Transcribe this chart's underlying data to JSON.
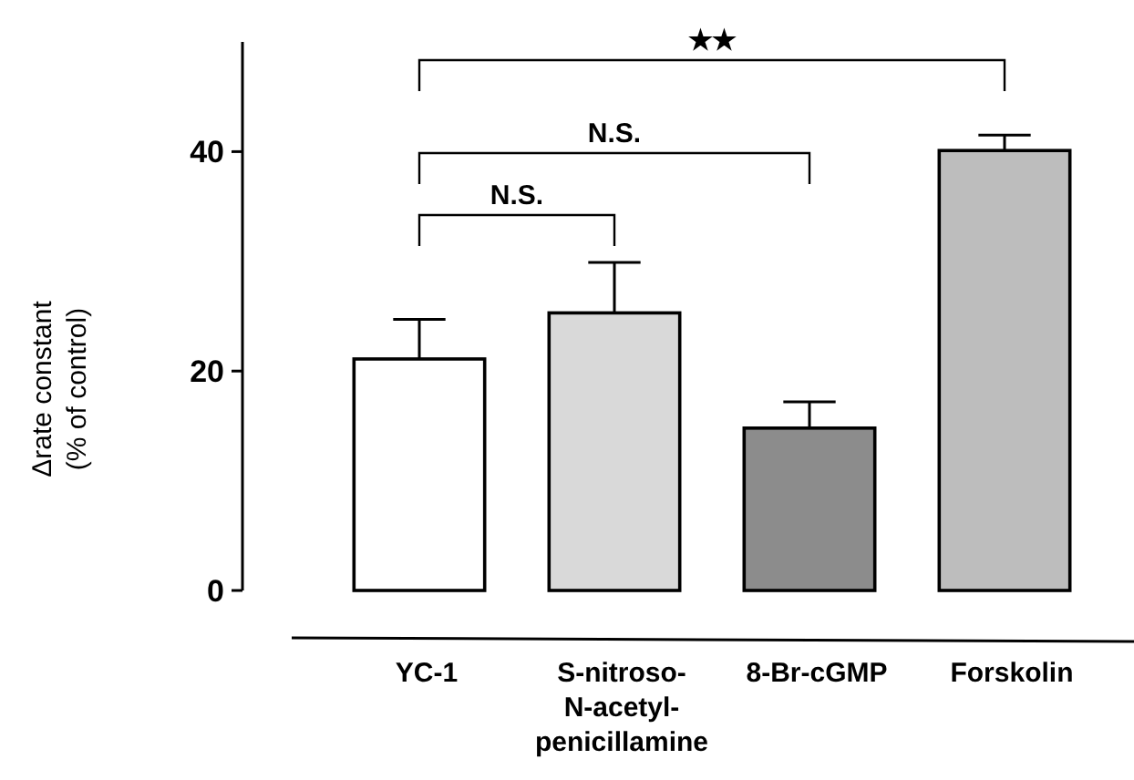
{
  "chart_data": {
    "type": "bar",
    "ylabel": "Δrate constant (% of control)",
    "categories": [
      "YC-1",
      "S-nitroso-N-acetyl-penicillamine",
      "8-Br-cGMP",
      "Forskolin"
    ],
    "values": [
      21.1,
      25.3,
      14.8,
      40.1
    ],
    "errors": [
      3.6,
      4.6,
      2.4,
      1.4
    ],
    "colors": [
      "#ffffff",
      "#d9d9d9",
      "#8c8c8c",
      "#bdbdbd"
    ],
    "ylim": [
      0,
      50
    ],
    "yticks": [
      0,
      20,
      40
    ],
    "annotations": [
      "N.S.",
      "N.S.",
      "★★"
    ],
    "grid": false
  }
}
